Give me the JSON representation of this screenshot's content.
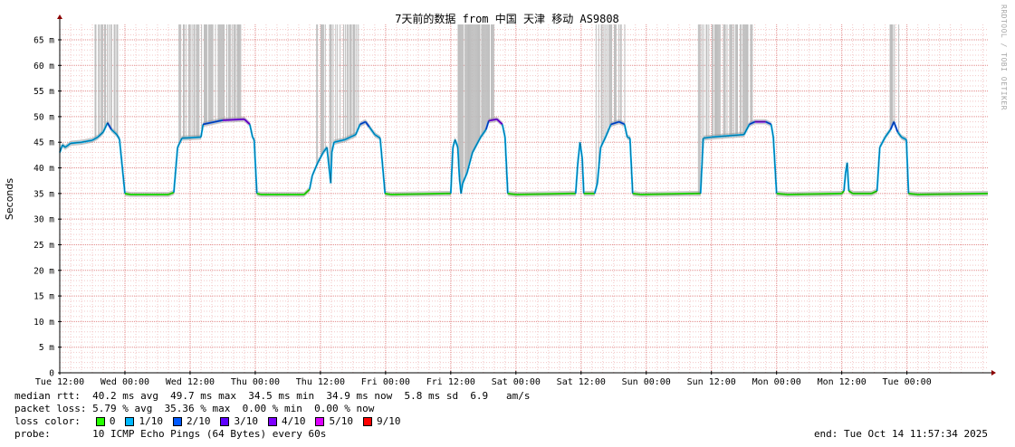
{
  "chart_data": {
    "type": "line",
    "title": "7天前的数据 from 中国 天津 移动 AS9808",
    "ylabel": "Seconds",
    "ylim": [
      0,
      68
    ],
    "yticks": [
      {
        "v": 0,
        "label": "0"
      },
      {
        "v": 5,
        "label": "5 m"
      },
      {
        "v": 10,
        "label": "10 m"
      },
      {
        "v": 15,
        "label": "15 m"
      },
      {
        "v": 20,
        "label": "20 m"
      },
      {
        "v": 25,
        "label": "25 m"
      },
      {
        "v": 30,
        "label": "30 m"
      },
      {
        "v": 35,
        "label": "35 m"
      },
      {
        "v": 40,
        "label": "40 m"
      },
      {
        "v": 45,
        "label": "45 m"
      },
      {
        "v": 50,
        "label": "50 m"
      },
      {
        "v": 55,
        "label": "55 m"
      },
      {
        "v": 60,
        "label": "60 m"
      },
      {
        "v": 65,
        "label": "65 m"
      }
    ],
    "xlim": [
      0,
      170.9
    ],
    "xticks": [
      {
        "t": 0,
        "label": "Tue 12:00"
      },
      {
        "t": 12,
        "label": "Wed 00:00"
      },
      {
        "t": 24,
        "label": "Wed 12:00"
      },
      {
        "t": 36,
        "label": "Thu 00:00"
      },
      {
        "t": 48,
        "label": "Thu 12:00"
      },
      {
        "t": 60,
        "label": "Fri 00:00"
      },
      {
        "t": 72,
        "label": "Fri 12:00"
      },
      {
        "t": 84,
        "label": "Sat 00:00"
      },
      {
        "t": 96,
        "label": "Sat 12:00"
      },
      {
        "t": 108,
        "label": "Sun 00:00"
      },
      {
        "t": 120,
        "label": "Sun 12:00"
      },
      {
        "t": 132,
        "label": "Mon 00:00"
      },
      {
        "t": 144,
        "label": "Mon 12:00"
      },
      {
        "t": 156,
        "label": "Tue 00:00"
      }
    ],
    "grid": true,
    "median_series": [
      [
        0,
        43
      ],
      [
        0.5,
        44.5
      ],
      [
        1,
        44
      ],
      [
        2,
        44.8
      ],
      [
        4,
        45
      ],
      [
        6,
        45.4
      ],
      [
        7,
        46
      ],
      [
        8,
        47
      ],
      [
        8.8,
        48.8
      ],
      [
        9.5,
        47.5
      ],
      [
        10.5,
        46.5
      ],
      [
        11,
        45.6
      ],
      [
        12,
        35
      ],
      [
        13,
        34.8
      ],
      [
        20,
        34.8
      ],
      [
        21,
        35.2
      ],
      [
        21.7,
        44
      ],
      [
        22.5,
        45.8
      ],
      [
        26,
        46
      ],
      [
        26.4,
        48.5
      ],
      [
        30,
        49.3
      ],
      [
        34,
        49.5
      ],
      [
        35,
        48.5
      ],
      [
        35.5,
        46
      ],
      [
        35.8,
        45.5
      ],
      [
        36.3,
        35
      ],
      [
        37,
        34.8
      ],
      [
        45,
        34.8
      ],
      [
        46,
        35.8
      ],
      [
        46.5,
        38.5
      ],
      [
        47.5,
        41
      ],
      [
        48.5,
        43
      ],
      [
        49.2,
        44
      ],
      [
        49.6,
        40
      ],
      [
        49.9,
        37
      ],
      [
        50.1,
        43
      ],
      [
        50.5,
        45
      ],
      [
        52.5,
        45.5
      ],
      [
        54.5,
        46.5
      ],
      [
        55.3,
        48.5
      ],
      [
        56.3,
        49
      ],
      [
        57,
        48
      ],
      [
        58,
        46.5
      ],
      [
        59,
        45.8
      ],
      [
        59.9,
        35
      ],
      [
        61,
        34.8
      ],
      [
        71,
        35
      ],
      [
        72,
        35
      ],
      [
        72.4,
        44
      ],
      [
        72.8,
        45.5
      ],
      [
        73.3,
        44
      ],
      [
        73.6,
        38
      ],
      [
        73.9,
        35
      ],
      [
        74.2,
        37
      ],
      [
        75,
        39
      ],
      [
        76,
        43
      ],
      [
        77.5,
        46
      ],
      [
        78.5,
        47.5
      ],
      [
        79,
        49.2
      ],
      [
        80.5,
        49.5
      ],
      [
        81.5,
        48.5
      ],
      [
        82,
        46
      ],
      [
        82.5,
        35
      ],
      [
        84,
        34.8
      ],
      [
        94,
        35
      ],
      [
        95,
        35
      ],
      [
        95.4,
        41
      ],
      [
        95.8,
        45
      ],
      [
        96.2,
        42
      ],
      [
        96.5,
        35
      ],
      [
        98.5,
        35
      ],
      [
        99,
        37
      ],
      [
        99.6,
        44
      ],
      [
        100.5,
        46
      ],
      [
        101.5,
        48.5
      ],
      [
        103,
        49
      ],
      [
        104,
        48.5
      ],
      [
        104.5,
        46
      ],
      [
        105,
        45.8
      ],
      [
        105.5,
        35
      ],
      [
        107,
        34.8
      ],
      [
        117,
        35
      ],
      [
        118,
        35
      ],
      [
        118.5,
        45.8
      ],
      [
        120,
        46
      ],
      [
        126,
        46.5
      ],
      [
        127,
        48.5
      ],
      [
        128,
        49
      ],
      [
        130,
        49
      ],
      [
        131,
        48.5
      ],
      [
        131.4,
        46
      ],
      [
        132,
        35
      ],
      [
        134,
        34.8
      ],
      [
        144,
        35
      ],
      [
        144.4,
        35.5
      ],
      [
        144.7,
        39
      ],
      [
        145,
        41
      ],
      [
        145.3,
        35.5
      ],
      [
        146,
        35
      ],
      [
        149.5,
        35
      ],
      [
        150.5,
        35.5
      ],
      [
        151,
        44
      ],
      [
        152,
        46
      ],
      [
        153,
        47.5
      ],
      [
        153.6,
        49
      ],
      [
        154.3,
        47
      ],
      [
        155,
        46
      ],
      [
        155.9,
        45.5
      ],
      [
        156.3,
        35
      ],
      [
        158,
        34.8
      ],
      [
        170.9,
        35
      ]
    ],
    "spike_bursts": [
      [
        6.5,
        10.8
      ],
      [
        21.8,
        33.6
      ],
      [
        47.3,
        55.7
      ],
      [
        73.2,
        80
      ],
      [
        98.6,
        104.1
      ],
      [
        117.6,
        127.6
      ],
      [
        152.9,
        154.5
      ]
    ],
    "spike_top": 68
  },
  "stats": {
    "median_rtt": "median rtt:  40.2 ms avg  49.7 ms max  34.5 ms min  34.9 ms now  5.8 ms sd  6.9   am/s",
    "packet_loss": "packet loss: 5.79 % avg  35.36 % max  0.00 % min  0.00 % now",
    "loss_color_label": "loss color:",
    "loss_colors": [
      {
        "label": "0",
        "color": "#26ff00"
      },
      {
        "label": "1/10",
        "color": "#00b8ff"
      },
      {
        "label": "2/10",
        "color": "#0059ff"
      },
      {
        "label": "3/10",
        "color": "#5e00ff"
      },
      {
        "label": "4/10",
        "color": "#7e00ff"
      },
      {
        "label": "5/10",
        "color": "#dd00ff"
      },
      {
        "label": "9/10",
        "color": "#ff0000"
      }
    ],
    "probe": "probe:       10 ICMP Echo Pings (64 Bytes) every 60s",
    "end": "end: Tue Oct 14 11:57:34 2025"
  },
  "watermark": "RRDTOOL / TOBI OETIKER"
}
